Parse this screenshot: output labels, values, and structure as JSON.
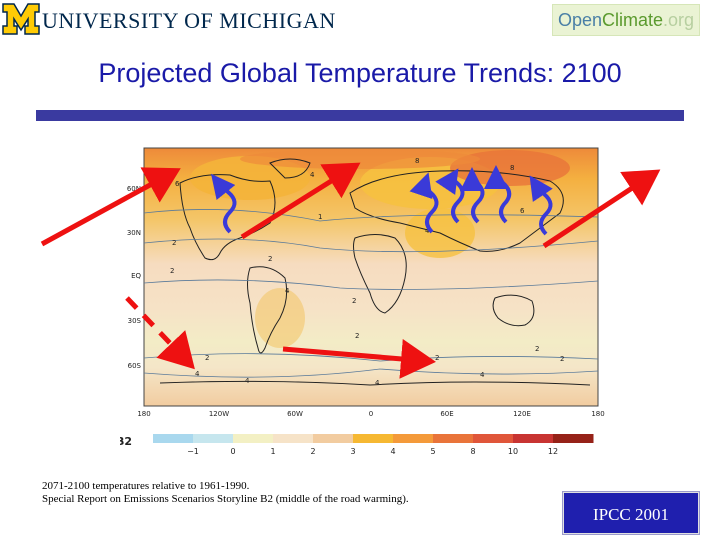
{
  "header": {
    "university_logo_text": "UNIVERSITY OF MICHIGAN",
    "openclimate_logo": {
      "part1": "Open",
      "part2": "Climate",
      "part3": ".org"
    }
  },
  "slide": {
    "title": "Projected Global Temperature Trends: 2100"
  },
  "map": {
    "lat_labels": [
      "60N",
      "30N",
      "EQ",
      "30S",
      "60S"
    ],
    "lon_labels": [
      "180",
      "120W",
      "60W",
      "0",
      "60E",
      "120E",
      "180"
    ],
    "legend_title": "B2",
    "legend_values": [
      "−1",
      "0",
      "1",
      "2",
      "3",
      "4",
      "5",
      "8",
      "10",
      "12"
    ],
    "legend_colors": [
      "#a9d8ee",
      "#c6e6ee",
      "#f3f0c4",
      "#f6e3c8",
      "#f2cca0",
      "#f6b832",
      "#f49a3a",
      "#e9743a",
      "#e0563a",
      "#c83432",
      "#962218"
    ],
    "contour_labels": [
      "2",
      "2",
      "2",
      "2",
      "4",
      "4",
      "4",
      "6",
      "6",
      "8",
      "8",
      "1",
      "2",
      "4",
      "2",
      "2",
      "4",
      "2",
      "2",
      "4",
      "4"
    ]
  },
  "caption": {
    "line1": "2071-2100 temperatures relative to 1961-1990.",
    "line2": "Special Report on Emissions Scenarios Storyline B2 (middle of the road warming)."
  },
  "source_badge": "IPCC 2001",
  "colors": {
    "title": "#1a1aa8",
    "bar": "#3a3aa0",
    "badge_bg": "#1f1fae",
    "arrow_red": "#ee1111",
    "arrow_blue": "#3a3ad8"
  }
}
